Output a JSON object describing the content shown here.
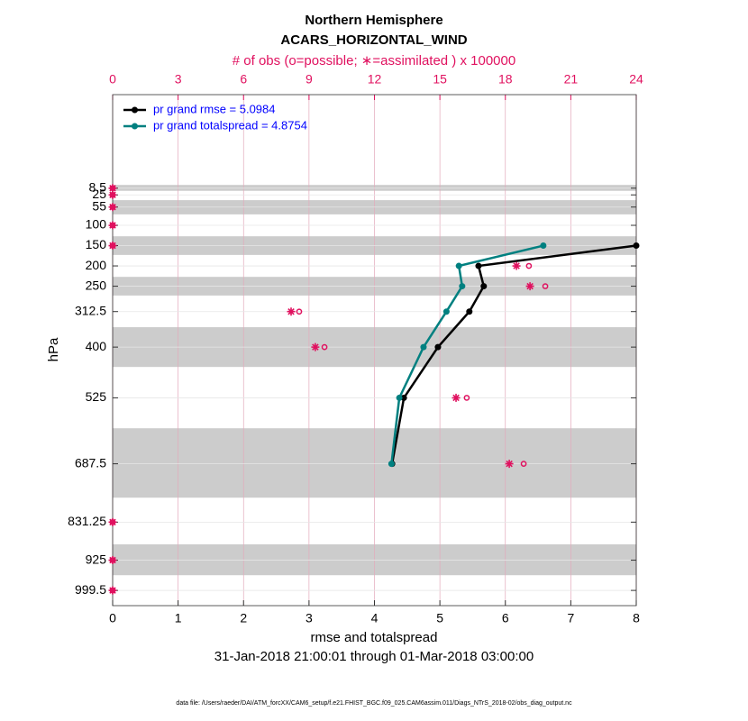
{
  "chart_data": {
    "type": "line",
    "title": "Northern Hemisphere",
    "subtitle": "ACARS_HORIZONTAL_WIND",
    "x_label": "rmse and totalspread",
    "x2_label": "# of obs (o=possible; ∗=assimilated ) x 100000",
    "y_label": "hPa",
    "date_range": "31-Jan-2018 21:00:01 through 01-Mar-2018 03:00:00",
    "footnote": "data file: /Users/raeder/DAI/ATM_forcXX/CAM6_setup/f.e21.FHIST_BGC.f09_025.CAM6assim.011/Diags_NTrS_2018-02/obs_diag_output.nc",
    "y": [
      8.5,
      25,
      55,
      100,
      150,
      200,
      250,
      312.5,
      400,
      525,
      687.5,
      831.25,
      925,
      999.5
    ],
    "ylim": [
      1037,
      -222
    ],
    "yticks": [
      8.5,
      25,
      55,
      100,
      150,
      200,
      250,
      312.5,
      400,
      525,
      687.5,
      831.25,
      925,
      999.5
    ],
    "xlim": [
      0,
      8
    ],
    "xticks": [
      0,
      1,
      2,
      3,
      4,
      5,
      6,
      7,
      8
    ],
    "x2lim": [
      0,
      24
    ],
    "x2ticks": [
      0,
      3,
      6,
      9,
      12,
      15,
      18,
      21,
      24
    ],
    "shaded_layers": [
      [
        0.5,
        15
      ],
      [
        38,
        73
      ],
      [
        127,
        173
      ],
      [
        227,
        273
      ],
      [
        351,
        449
      ],
      [
        600,
        771
      ],
      [
        886,
        962
      ]
    ],
    "grid": true,
    "legend": "upper left",
    "series": [
      {
        "name": "pr grand rmse = 5.0984",
        "color": "#000000",
        "marker": "dot",
        "values": [
          null,
          null,
          null,
          null,
          8.0,
          5.59,
          5.67,
          5.45,
          4.97,
          4.45,
          4.27,
          null,
          null,
          null
        ]
      },
      {
        "name": "pr grand totalspread = 4.8754",
        "color": "#008080",
        "marker": "dot",
        "values": [
          null,
          null,
          null,
          null,
          6.58,
          5.29,
          5.34,
          5.1,
          4.75,
          4.38,
          4.26,
          null,
          null,
          null
        ]
      },
      {
        "axis": "x2",
        "color": "#e0115f",
        "marker": "o",
        "values": [
          0,
          0,
          0,
          0,
          0,
          19.08,
          19.83,
          8.55,
          9.71,
          16.23,
          18.84,
          0,
          0,
          0
        ]
      },
      {
        "axis": "x2",
        "color": "#e0115f",
        "marker": "*",
        "values": [
          0,
          0,
          0,
          0,
          0,
          18.51,
          19.13,
          8.18,
          9.29,
          15.74,
          18.18,
          0,
          0,
          0
        ]
      }
    ]
  }
}
